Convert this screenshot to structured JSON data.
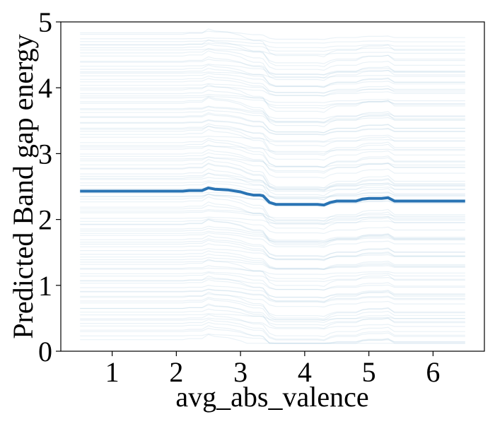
{
  "chart_data": {
    "type": "line",
    "xlabel": "avg_abs_valence",
    "ylabel": "Predicted Band gap energy",
    "xlim": [
      0.2,
      6.8
    ],
    "ylim": [
      0,
      5
    ],
    "xticks": [
      1,
      2,
      3,
      4,
      5,
      6
    ],
    "yticks": [
      0,
      1,
      2,
      3,
      4,
      5
    ],
    "grid": false,
    "ice_color": "#9ec4dc",
    "average_color": "#2a74b4",
    "series": [
      {
        "role": "average",
        "x": [
          0.5,
          1.0,
          1.5,
          2.0,
          2.1,
          2.2,
          2.3,
          2.4,
          2.5,
          2.6,
          2.8,
          3.0,
          3.1,
          3.2,
          3.3,
          3.35,
          3.45,
          3.55,
          3.7,
          4.0,
          4.2,
          4.3,
          4.4,
          4.5,
          4.6,
          4.8,
          4.9,
          5.0,
          5.1,
          5.2,
          5.3,
          5.4,
          5.5,
          5.7,
          6.0,
          6.3,
          6.5
        ],
        "y": [
          2.43,
          2.43,
          2.43,
          2.43,
          2.43,
          2.44,
          2.44,
          2.44,
          2.48,
          2.46,
          2.45,
          2.42,
          2.39,
          2.37,
          2.37,
          2.36,
          2.26,
          2.23,
          2.23,
          2.23,
          2.23,
          2.22,
          2.26,
          2.28,
          2.28,
          2.28,
          2.31,
          2.32,
          2.32,
          2.32,
          2.33,
          2.28,
          2.28,
          2.28,
          2.28,
          2.28,
          2.28
        ]
      }
    ],
    "ice_lines": {
      "count": 110,
      "x_range": [
        0.5,
        6.5
      ],
      "y_range": [
        0.2,
        4.85
      ]
    }
  }
}
